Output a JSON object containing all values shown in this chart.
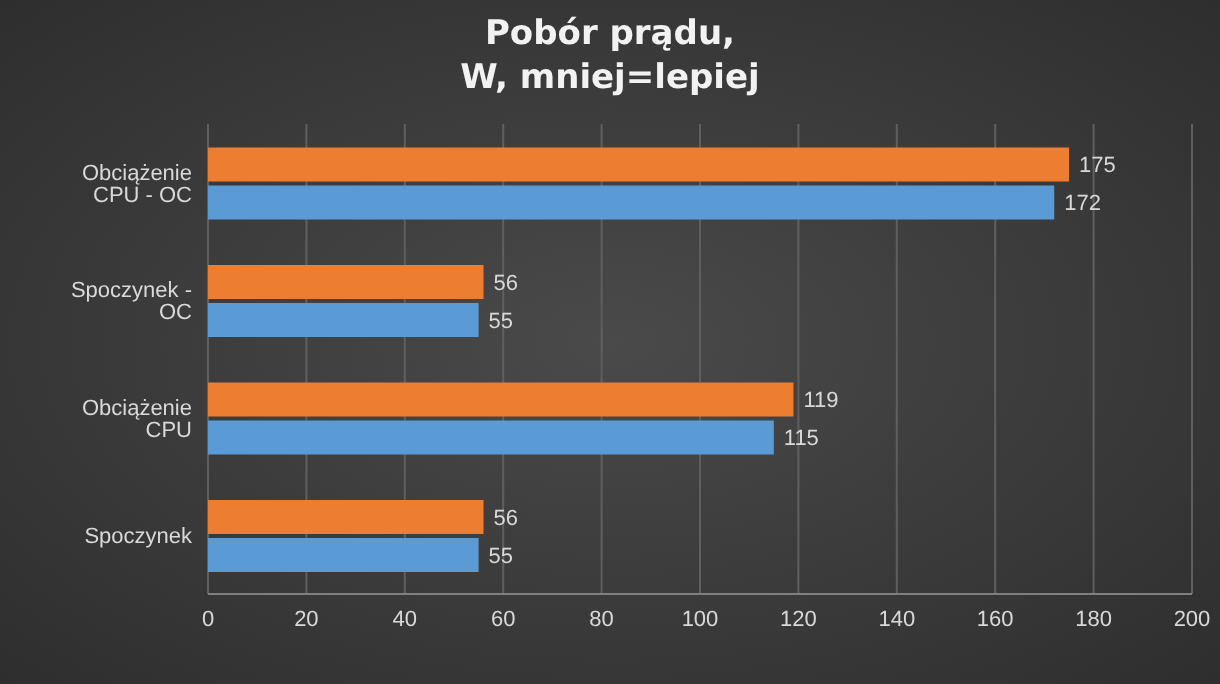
{
  "chart_data": {
    "type": "bar",
    "orientation": "horizontal",
    "title": "Pobór prądu,\nW, mniej=lepiej",
    "categories": [
      "Obciążenie CPU - OC",
      "Spoczynek - OC",
      "Obciążenie CPU",
      "Spoczynek"
    ],
    "series": [
      {
        "color": "#ed7d31",
        "values": [
          175,
          56,
          119,
          56
        ]
      },
      {
        "color": "#5b9bd5",
        "values": [
          172,
          55,
          115,
          55
        ]
      }
    ],
    "xlim": [
      0,
      200
    ],
    "xticks": [
      0,
      20,
      40,
      60,
      80,
      100,
      120,
      140,
      160,
      180,
      200
    ],
    "grid": "x",
    "data_labels": true,
    "legend": false
  }
}
